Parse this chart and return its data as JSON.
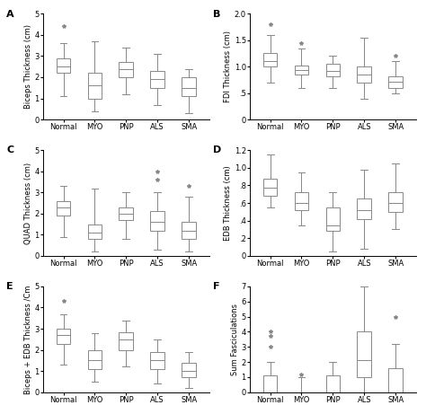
{
  "panels": [
    {
      "label": "A",
      "ylabel": "Biceps Thickness (cm)",
      "ylim": [
        0,
        5
      ],
      "yticks": [
        0,
        1,
        2,
        3,
        4,
        5
      ],
      "ytick_labels": [
        "0",
        "1",
        "2",
        "3",
        "4",
        "5"
      ],
      "groups": [
        "Normal",
        "MYO",
        "PNP",
        "ALS",
        "SMA"
      ],
      "boxes": [
        {
          "q1": 2.2,
          "median": 2.5,
          "q3": 2.9,
          "whislo": 1.1,
          "whishi": 3.6,
          "fliers": [
            4.4
          ]
        },
        {
          "q1": 1.0,
          "median": 1.6,
          "q3": 2.2,
          "whislo": 0.4,
          "whishi": 3.7,
          "fliers": []
        },
        {
          "q1": 2.0,
          "median": 2.4,
          "q3": 2.7,
          "whislo": 1.2,
          "whishi": 3.4,
          "fliers": []
        },
        {
          "q1": 1.5,
          "median": 1.9,
          "q3": 2.3,
          "whislo": 0.7,
          "whishi": 3.1,
          "fliers": []
        },
        {
          "q1": 1.1,
          "median": 1.5,
          "q3": 2.0,
          "whislo": 0.3,
          "whishi": 2.4,
          "fliers": []
        }
      ]
    },
    {
      "label": "B",
      "ylabel": "FDI Thickness (cm)",
      "ylim": [
        0,
        2.0
      ],
      "yticks": [
        0,
        0.5,
        1.0,
        1.5,
        2.0
      ],
      "ytick_labels": [
        "0",
        ".5",
        "1.0",
        "1.5",
        "2.0"
      ],
      "groups": [
        "Normal",
        "MYO",
        "PNP",
        "ALS",
        "SMA"
      ],
      "boxes": [
        {
          "q1": 1.0,
          "median": 1.1,
          "q3": 1.25,
          "whislo": 0.7,
          "whishi": 1.6,
          "fliers": [
            1.8
          ]
        },
        {
          "q1": 0.85,
          "median": 0.93,
          "q3": 1.02,
          "whislo": 0.6,
          "whishi": 1.35,
          "fliers": [
            1.45
          ]
        },
        {
          "q1": 0.82,
          "median": 0.92,
          "q3": 1.05,
          "whislo": 0.6,
          "whishi": 1.2,
          "fliers": []
        },
        {
          "q1": 0.7,
          "median": 0.85,
          "q3": 1.0,
          "whislo": 0.4,
          "whishi": 1.55,
          "fliers": []
        },
        {
          "q1": 0.6,
          "median": 0.72,
          "q3": 0.82,
          "whislo": 0.5,
          "whishi": 1.1,
          "fliers": [
            1.2
          ]
        }
      ]
    },
    {
      "label": "C",
      "ylabel": "QUAD Thickness (cm)",
      "ylim": [
        0,
        5
      ],
      "yticks": [
        0,
        1,
        2,
        3,
        4,
        5
      ],
      "ytick_labels": [
        "0",
        "1",
        "2",
        "3",
        "4",
        "5"
      ],
      "groups": [
        "Normal",
        "MYO",
        "PNP",
        "ALS",
        "SMA"
      ],
      "boxes": [
        {
          "q1": 1.9,
          "median": 2.3,
          "q3": 2.6,
          "whislo": 0.9,
          "whishi": 3.3,
          "fliers": []
        },
        {
          "q1": 0.8,
          "median": 1.1,
          "q3": 1.5,
          "whislo": 0.2,
          "whishi": 3.2,
          "fliers": []
        },
        {
          "q1": 1.7,
          "median": 2.0,
          "q3": 2.3,
          "whislo": 0.8,
          "whishi": 3.0,
          "fliers": []
        },
        {
          "q1": 1.2,
          "median": 1.6,
          "q3": 2.1,
          "whislo": 0.3,
          "whishi": 3.0,
          "fliers": [
            3.6,
            4.0
          ]
        },
        {
          "q1": 0.8,
          "median": 1.2,
          "q3": 1.6,
          "whislo": 0.2,
          "whishi": 2.8,
          "fliers": [
            3.3
          ]
        }
      ]
    },
    {
      "label": "D",
      "ylabel": "EDB Thickness (cm)",
      "ylim": [
        0,
        1.2
      ],
      "yticks": [
        0,
        0.2,
        0.4,
        0.6,
        0.8,
        1.0,
        1.2
      ],
      "ytick_labels": [
        "0",
        ".2",
        ".4",
        ".6",
        ".8",
        "1.0",
        "1.2"
      ],
      "groups": [
        "Normal",
        "MYO",
        "PNP",
        "ALS",
        "SMA"
      ],
      "boxes": [
        {
          "q1": 0.68,
          "median": 0.77,
          "q3": 0.88,
          "whislo": 0.55,
          "whishi": 1.15,
          "fliers": []
        },
        {
          "q1": 0.52,
          "median": 0.6,
          "q3": 0.72,
          "whislo": 0.35,
          "whishi": 0.95,
          "fliers": []
        },
        {
          "q1": 0.28,
          "median": 0.35,
          "q3": 0.55,
          "whislo": 0.05,
          "whishi": 0.72,
          "fliers": []
        },
        {
          "q1": 0.42,
          "median": 0.52,
          "q3": 0.65,
          "whislo": 0.08,
          "whishi": 0.98,
          "fliers": []
        },
        {
          "q1": 0.5,
          "median": 0.6,
          "q3": 0.72,
          "whislo": 0.3,
          "whishi": 1.05,
          "fliers": []
        }
      ]
    },
    {
      "label": "E",
      "ylabel": "Biceps + EDB Thickness /Cm",
      "ylim": [
        0,
        5
      ],
      "yticks": [
        0,
        1,
        2,
        3,
        4,
        5
      ],
      "ytick_labels": [
        "0",
        "1",
        "2",
        "3",
        "4",
        "5"
      ],
      "groups": [
        "Normal",
        "MYO",
        "PNP",
        "ALS",
        "SMA"
      ],
      "boxes": [
        {
          "q1": 2.3,
          "median": 2.7,
          "q3": 3.0,
          "whislo": 1.3,
          "whishi": 3.7,
          "fliers": [
            4.3
          ]
        },
        {
          "q1": 1.1,
          "median": 1.5,
          "q3": 2.0,
          "whislo": 0.5,
          "whishi": 2.8,
          "fliers": []
        },
        {
          "q1": 2.0,
          "median": 2.5,
          "q3": 2.85,
          "whislo": 1.2,
          "whishi": 3.4,
          "fliers": []
        },
        {
          "q1": 1.1,
          "median": 1.5,
          "q3": 1.9,
          "whislo": 0.4,
          "whishi": 2.5,
          "fliers": []
        },
        {
          "q1": 0.7,
          "median": 1.0,
          "q3": 1.4,
          "whislo": 0.2,
          "whishi": 1.9,
          "fliers": []
        }
      ]
    },
    {
      "label": "F",
      "ylabel": "Sum Fasciculations",
      "ylim": [
        0,
        7
      ],
      "yticks": [
        0,
        1,
        2,
        3,
        4,
        5,
        6,
        7
      ],
      "ytick_labels": [
        "0",
        "1",
        "2",
        "3",
        "4",
        "5",
        "6",
        "7"
      ],
      "groups": [
        "Normal",
        "MYO",
        "PNP",
        "ALS",
        "SMA"
      ],
      "boxes": [
        {
          "q1": 0.0,
          "median": 0.0,
          "q3": 1.1,
          "whislo": 0.0,
          "whishi": 2.0,
          "fliers": [
            3.0,
            3.7,
            4.0
          ]
        },
        {
          "q1": 0.0,
          "median": 0.0,
          "q3": 0.0,
          "whislo": 0.0,
          "whishi": 1.0,
          "fliers": [
            1.2
          ]
        },
        {
          "q1": 0.0,
          "median": 0.0,
          "q3": 1.1,
          "whislo": 0.0,
          "whishi": 2.0,
          "fliers": []
        },
        {
          "q1": 1.0,
          "median": 2.1,
          "q3": 4.0,
          "whislo": 0.0,
          "whishi": 7.0,
          "fliers": []
        },
        {
          "q1": 0.0,
          "median": 0.0,
          "q3": 1.6,
          "whislo": 0.0,
          "whishi": 3.2,
          "fliers": [
            5.0
          ]
        }
      ]
    }
  ],
  "box_facecolor": "white",
  "box_edgecolor": "#888888",
  "median_color": "#888888",
  "whisker_color": "#888888",
  "cap_color": "#888888",
  "flier_marker": "*",
  "flier_color": "#888888",
  "figure_bg": "white",
  "font_size": 6,
  "label_font_size": 6,
  "panel_label_fontsize": 8
}
